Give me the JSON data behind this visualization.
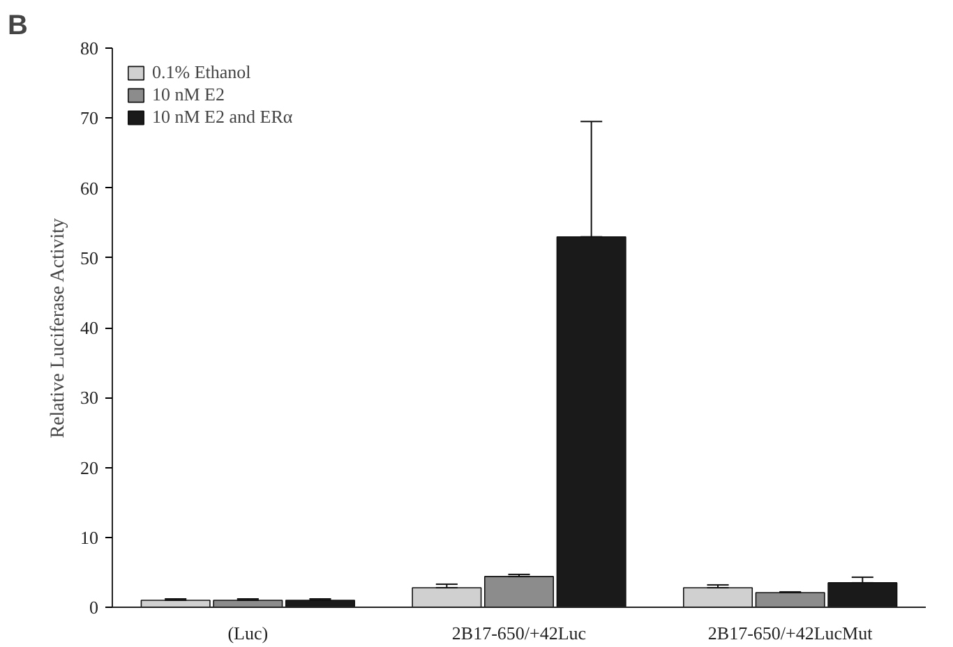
{
  "chart_data": {
    "type": "bar",
    "ylabel": "Relative Luciferase Activity",
    "annotations": [
      "B"
    ],
    "categories": [
      "(Luc)",
      "2B17-650/+42Luc",
      "2B17-650/+42LucMut"
    ],
    "series": [
      {
        "name": "0.1% Ethanol",
        "color": "#d0d0d0",
        "values": [
          1.0,
          2.8,
          2.8
        ],
        "errors": [
          [
            1.0,
            1.2
          ],
          [
            2.8,
            3.3
          ],
          [
            2.8,
            3.2
          ]
        ]
      },
      {
        "name": "10 nM E2",
        "color": "#8c8c8c",
        "values": [
          1.0,
          4.4,
          2.1
        ],
        "errors": [
          [
            1.0,
            1.2
          ],
          [
            4.4,
            4.7
          ],
          [
            2.1,
            2.2
          ]
        ]
      },
      {
        "name": "10 nM E2 and ERα",
        "color": "#1a1a1a",
        "values": [
          1.0,
          53.0,
          3.5
        ],
        "errors": [
          [
            1.0,
            1.2
          ],
          [
            53.0,
            69.5
          ],
          [
            3.5,
            4.3
          ]
        ]
      }
    ],
    "ylim": [
      0,
      80
    ],
    "yticks": [
      0,
      10,
      20,
      30,
      40,
      50,
      60,
      70,
      80
    ],
    "grid": false,
    "legend": "top left"
  }
}
